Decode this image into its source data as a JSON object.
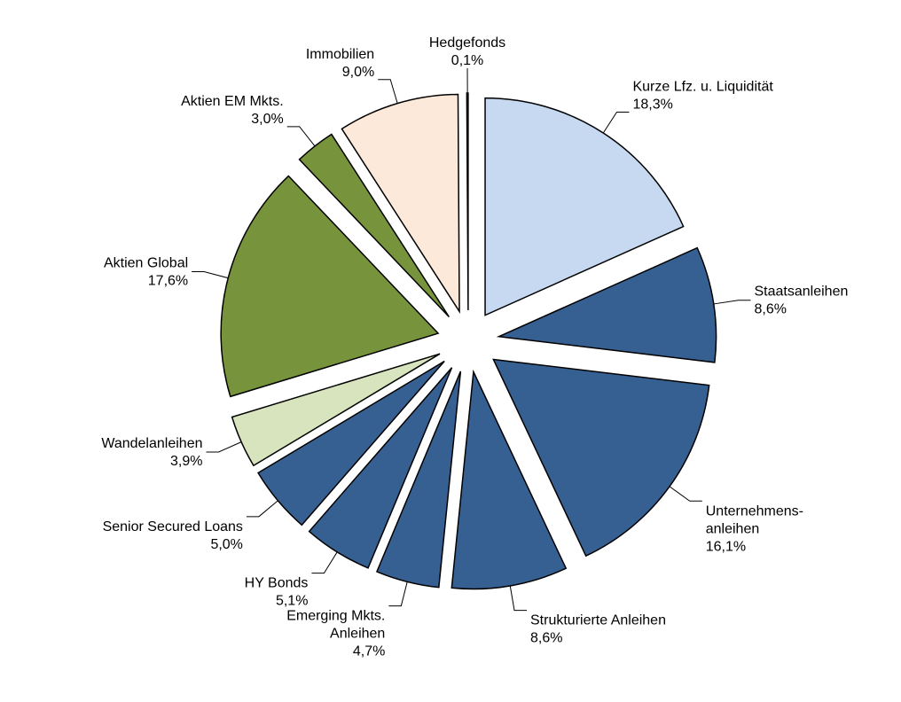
{
  "chart_data": {
    "type": "pie",
    "categories": [
      "Kurze Lfz. u. Liquidität",
      "Staatsanleihen",
      "Unternehmens-\nanleihen",
      "Strukturierte Anleihen",
      "Emerging Mkts.\nAnleihen",
      "HY Bonds",
      "Senior Secured Loans",
      "Wandelanleihen",
      "Aktien Global",
      "Aktien EM Mkts.",
      "Immobilien",
      "Hedgefonds"
    ],
    "values": [
      18.3,
      8.6,
      16.1,
      8.6,
      4.7,
      5.1,
      5.0,
      3.9,
      17.6,
      3.0,
      9.0,
      0.1
    ],
    "value_labels": [
      "18,3%",
      "8,6%",
      "16,1%",
      "8,6%",
      "4,7%",
      "5,1%",
      "5,0%",
      "3,9%",
      "17,6%",
      "3,0%",
      "9,0%",
      "0,1%"
    ],
    "colors": [
      "#c6d9f1",
      "#376092",
      "#376092",
      "#376092",
      "#376092",
      "#376092",
      "#376092",
      "#d7e4bd",
      "#77933c",
      "#77933c",
      "#fde9d9",
      "#c0504d"
    ]
  }
}
